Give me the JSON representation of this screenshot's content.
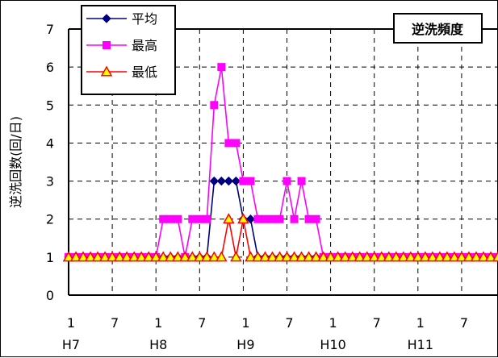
{
  "chart_data": {
    "type": "line",
    "title": "逆洗頻度",
    "ylabel": "逆洗回数(回/日)",
    "xlabel": "",
    "ylim": [
      0,
      7
    ],
    "yticks": [
      0,
      1,
      2,
      3,
      4,
      5,
      6,
      7
    ],
    "grid": true,
    "legend_position": "top-left",
    "x_count": 60,
    "x_tick_labels": [
      {
        "i": 0,
        "month": "1",
        "year": "H7"
      },
      {
        "i": 6,
        "month": "7",
        "year": ""
      },
      {
        "i": 12,
        "month": "1",
        "year": "H8"
      },
      {
        "i": 18,
        "month": "7",
        "year": ""
      },
      {
        "i": 24,
        "month": "1",
        "year": "H9"
      },
      {
        "i": 30,
        "month": "7",
        "year": ""
      },
      {
        "i": 36,
        "month": "1",
        "year": "H10"
      },
      {
        "i": 42,
        "month": "7",
        "year": ""
      },
      {
        "i": 48,
        "month": "1",
        "year": "H11"
      },
      {
        "i": 54,
        "month": "7",
        "year": ""
      }
    ],
    "series": [
      {
        "name": "平均",
        "color": "#000080",
        "marker": "diamond",
        "values": [
          1,
          1,
          1,
          1,
          1,
          1,
          1,
          1,
          1,
          1,
          1,
          1,
          1,
          1,
          1,
          1,
          1,
          1,
          1,
          1,
          3,
          3,
          3,
          3,
          2,
          2,
          1,
          1,
          1,
          1,
          1,
          1,
          1,
          1,
          1,
          1,
          1,
          1,
          1,
          1,
          1,
          1,
          1,
          1,
          1,
          1,
          1,
          1,
          1,
          1,
          1,
          1,
          1,
          1,
          1,
          1,
          1,
          1,
          1,
          1
        ]
      },
      {
        "name": "最高",
        "color": "#ff00ff",
        "marker": "square",
        "values": [
          1,
          1,
          1,
          1,
          1,
          1,
          1,
          1,
          1,
          1,
          1,
          1,
          1,
          2,
          2,
          2,
          1,
          2,
          2,
          2,
          5,
          6,
          4,
          4,
          3,
          3,
          2,
          2,
          2,
          2,
          3,
          2,
          3,
          2,
          2,
          1,
          1,
          1,
          1,
          1,
          1,
          1,
          1,
          1,
          1,
          1,
          1,
          1,
          1,
          1,
          1,
          1,
          1,
          1,
          1,
          1,
          1,
          1,
          1,
          1
        ]
      },
      {
        "name": "最低",
        "color": "#ff0000",
        "fill": "#ffff00",
        "marker": "triangle",
        "values": [
          1,
          1,
          1,
          1,
          1,
          1,
          1,
          1,
          1,
          1,
          1,
          1,
          1,
          1,
          1,
          1,
          1,
          1,
          1,
          1,
          1,
          1,
          2,
          1,
          2,
          1,
          1,
          1,
          1,
          1,
          1,
          1,
          1,
          1,
          1,
          1,
          1,
          1,
          1,
          1,
          1,
          1,
          1,
          1,
          1,
          1,
          1,
          1,
          1,
          1,
          1,
          1,
          1,
          1,
          1,
          1,
          1,
          1,
          1,
          1
        ]
      }
    ]
  }
}
